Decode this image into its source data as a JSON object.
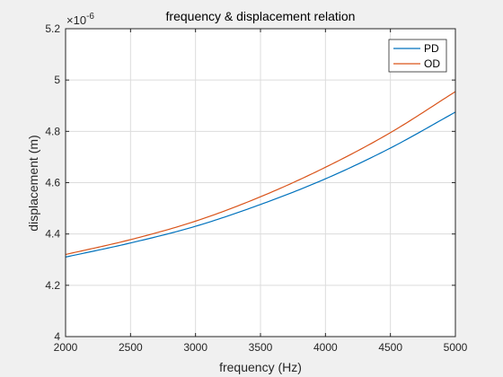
{
  "chart_data": {
    "type": "line",
    "title": "frequency & displacement relation",
    "xlabel": "frequency (Hz)",
    "ylabel": "displacement (m)",
    "exponent_label": "×10",
    "exponent_power": "-6",
    "xlim": [
      2000,
      5000
    ],
    "ylim": [
      4.0,
      5.2
    ],
    "x_ticks": [
      "2000",
      "2500",
      "3000",
      "3500",
      "4000",
      "4500",
      "5000"
    ],
    "y_ticks": [
      "4",
      "4.2",
      "4.4",
      "4.6",
      "4.8",
      "5",
      "5.2"
    ],
    "grid": true,
    "legend_position": "top-right",
    "x": [
      2000,
      2500,
      3000,
      3500,
      4000,
      4500,
      5000
    ],
    "series": [
      {
        "name": "PD",
        "color": "#0072bd",
        "values": [
          4.31,
          4.365,
          4.43,
          4.515,
          4.615,
          4.735,
          4.875
        ]
      },
      {
        "name": "OD",
        "color": "#d95319",
        "values": [
          4.32,
          4.378,
          4.45,
          4.545,
          4.66,
          4.795,
          4.955
        ]
      }
    ]
  }
}
